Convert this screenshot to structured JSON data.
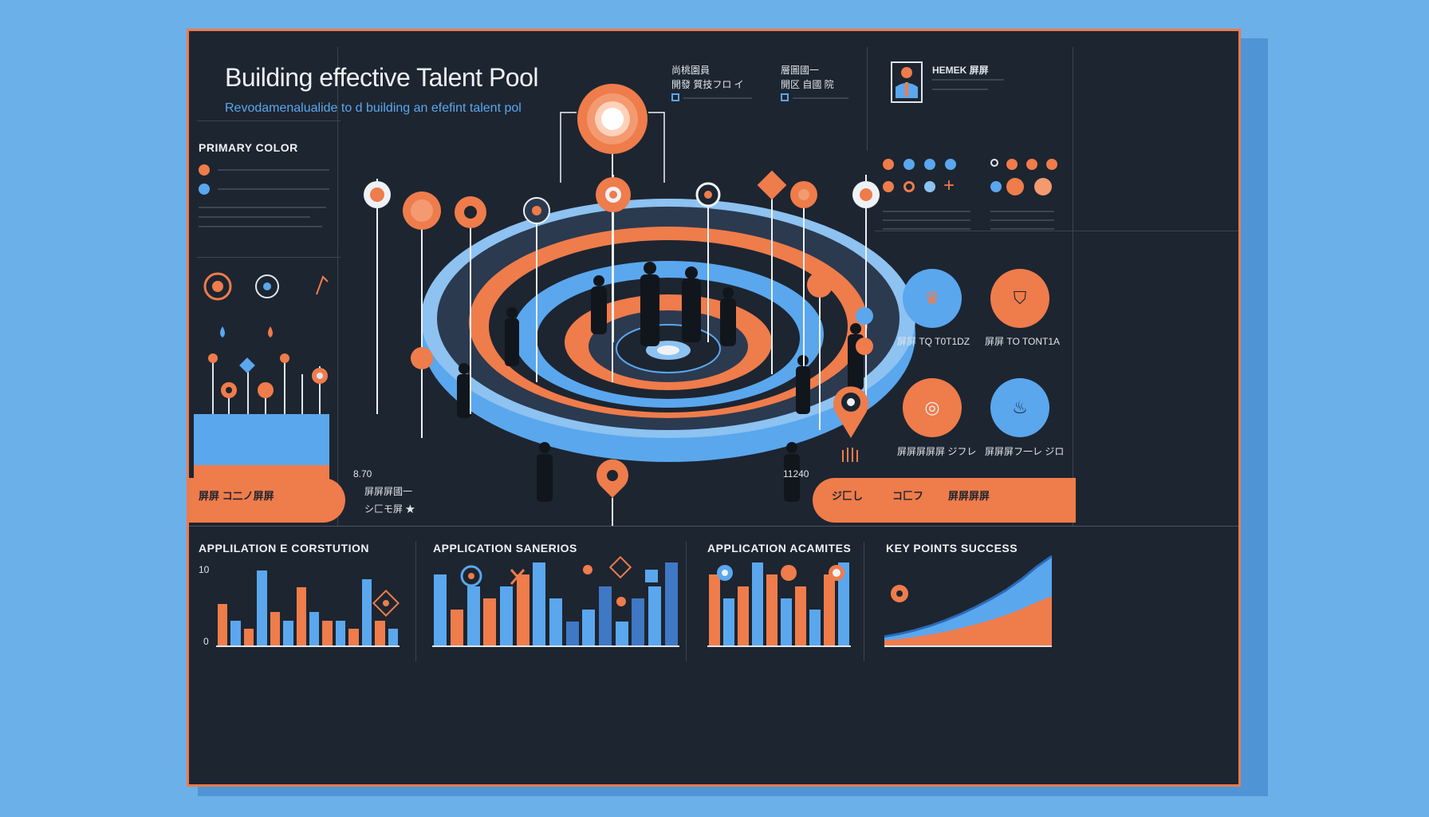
{
  "header": {
    "title": "Building effective Talent Pool",
    "subtitle": "Revodamenalualide to d building an efefint talent pol"
  },
  "top_legend": {
    "col1_a": "尚桃園員",
    "col1_b": "開發 質技フロ イ",
    "col2_a": "層圖國一",
    "col2_b": "開区 自國 院",
    "profile_label": "HEMEK 屏屏"
  },
  "primary_color": {
    "label": "PRIMARY COLOR",
    "colors": [
      "#ef7c4b",
      "#5aa7ee"
    ]
  },
  "values": {
    "left_value": "8.70",
    "right_value": "11240"
  },
  "circles": {
    "c1_label": "屏屏 TQ T0T1DZ",
    "c2_label": "屏屏 TO TONT1A",
    "c3_label": "屏屏屏屏屏 ジフレ",
    "c4_label": "屏屏屏フ一レ ジロ"
  },
  "pills": {
    "left": "屏屏 コ二ノ屏屏",
    "left_list": [
      "屏屏屏國一",
      "シ匚モ屏 ★"
    ],
    "right_a": "ジ匚し",
    "right_b": "コ匚フ",
    "right_c": "屏屏屏屏"
  },
  "sections": [
    {
      "label": "APPLILATION E CORSTUTION",
      "axis_top": "10",
      "axis_bottom": "0"
    },
    {
      "label": "APPLICATION SANERIOS"
    },
    {
      "label": "APPLICATION ACAMITES"
    },
    {
      "label": "KEY POINTS SUCCESS"
    }
  ],
  "icons": [
    "target-icon",
    "person-icon",
    "flame-icon",
    "gear-icon",
    "location-pin-icon",
    "puzzle-icon",
    "plus-icon"
  ],
  "chart_data": [
    {
      "type": "bar",
      "title": "APPLILATION E CORSTUTION",
      "values": [
        5,
        3,
        2,
        9,
        4,
        3,
        7,
        4,
        3,
        3,
        2,
        8,
        3,
        2
      ],
      "ylim": [
        0,
        10
      ]
    },
    {
      "type": "bar",
      "title": "APPLICATION SANERIOS",
      "values": [
        6,
        3,
        5,
        4,
        5,
        6,
        7,
        4,
        2,
        3,
        5,
        2,
        4,
        5,
        7
      ]
    },
    {
      "type": "bar",
      "title": "APPLICATION ACAMITES",
      "values": [
        6,
        4,
        5,
        7,
        6,
        4,
        5,
        3,
        6,
        7
      ]
    },
    {
      "type": "area",
      "title": "KEY POINTS SUCCESS",
      "values": [
        1,
        1.3,
        1.7,
        2.2,
        2.8,
        3.5,
        4.3,
        5.2,
        6.2,
        7.4,
        8.8,
        10
      ]
    }
  ]
}
